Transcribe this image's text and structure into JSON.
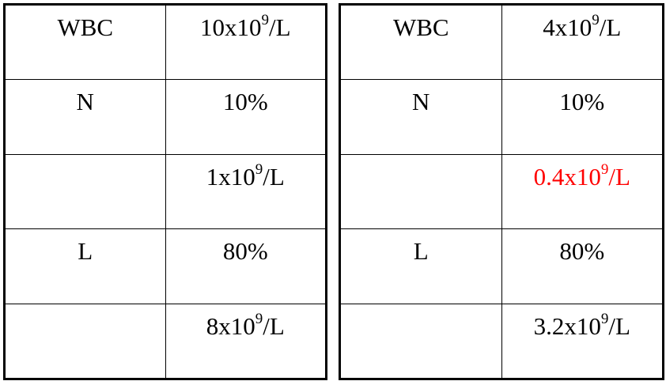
{
  "tables": [
    {
      "rows": [
        {
          "label": "WBC",
          "value": "10x10",
          "exp": "9",
          "unit": "/L"
        },
        {
          "label": "N",
          "value": "10%"
        },
        {
          "label": "",
          "value": "1x10",
          "exp": "9",
          "unit": "/L"
        },
        {
          "label": "L",
          "value": "80%"
        },
        {
          "label": "",
          "value": "8x10",
          "exp": "9",
          "unit": "/L"
        }
      ]
    },
    {
      "rows": [
        {
          "label": "WBC",
          "value": "4x10",
          "exp": "9",
          "unit": "/L"
        },
        {
          "label": "N",
          "value": "10%"
        },
        {
          "label": "",
          "value": "0.4x10",
          "exp": "9",
          "unit": "/L",
          "color": "#ff0000"
        },
        {
          "label": "L",
          "value": "80%"
        },
        {
          "label": "",
          "value": "3.2x10",
          "exp": "9",
          "unit": "/L"
        }
      ]
    }
  ]
}
